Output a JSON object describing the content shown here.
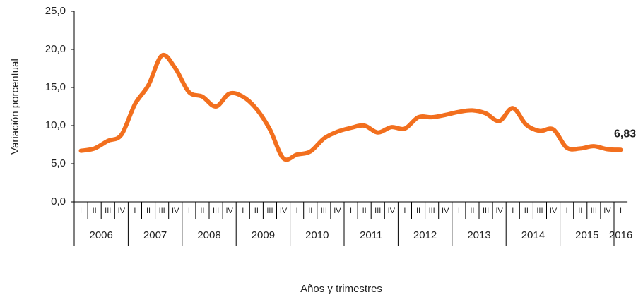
{
  "chart_data": {
    "type": "line",
    "y_label": "Variación porcentual",
    "x_label": "Años y trimestres",
    "categories": [
      "I",
      "II",
      "III",
      "IV",
      "I",
      "II",
      "III",
      "IV",
      "I",
      "II",
      "III",
      "IV",
      "I",
      "II",
      "III",
      "IV",
      "I",
      "II",
      "III",
      "IV",
      "I",
      "II",
      "III",
      "IV",
      "I",
      "II",
      "III",
      "IV",
      "I",
      "II",
      "III",
      "IV",
      "I",
      "II",
      "III",
      "IV",
      "I",
      "II",
      "III",
      "IV",
      "I"
    ],
    "years": [
      "2006",
      "2007",
      "2008",
      "2009",
      "2010",
      "2011",
      "2012",
      "2013",
      "2014",
      "2015",
      "2016"
    ],
    "series": [
      {
        "name": "Variación porcentual",
        "color": "#f26f1e",
        "values": [
          6.7,
          7.0,
          8.0,
          8.8,
          12.8,
          15.3,
          19.2,
          17.5,
          14.4,
          13.8,
          12.5,
          14.2,
          13.8,
          12.2,
          9.5,
          5.7,
          6.2,
          6.6,
          8.3,
          9.2,
          9.7,
          10.0,
          9.1,
          9.8,
          9.6,
          11.1,
          11.1,
          11.4,
          11.8,
          12.0,
          11.6,
          10.6,
          12.3,
          10.1,
          9.3,
          9.5,
          7.1,
          7.0,
          7.3,
          6.9,
          6.83
        ],
        "value_labels": [
          null,
          null,
          null,
          null,
          null,
          null,
          null,
          null,
          null,
          null,
          null,
          null,
          null,
          null,
          null,
          null,
          null,
          null,
          null,
          null,
          null,
          null,
          null,
          null,
          null,
          null,
          null,
          null,
          null,
          null,
          null,
          null,
          null,
          null,
          null,
          null,
          null,
          null,
          null,
          null,
          "6,83"
        ]
      }
    ],
    "ylim": [
      0,
      25
    ],
    "yticks": [
      {
        "value": 0,
        "label": "0,0"
      },
      {
        "value": 5,
        "label": "5,0"
      },
      {
        "value": 10,
        "label": "10,0"
      },
      {
        "value": 15,
        "label": "15,0"
      },
      {
        "value": 20,
        "label": "20,0"
      },
      {
        "value": 25,
        "label": "25,0"
      }
    ],
    "grid": false
  }
}
